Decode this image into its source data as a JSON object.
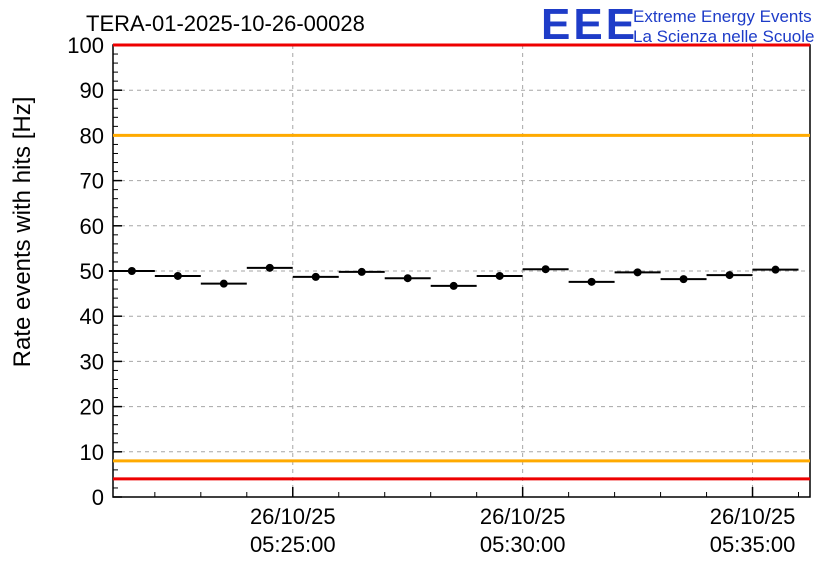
{
  "header": {
    "title": "TERA-01-2025-10-26-00028"
  },
  "logo": {
    "acronym": "EEE",
    "line1": "Extreme Energy Events",
    "line2": "La Scienza nelle Scuole",
    "color": "#1e3cc8"
  },
  "chart_data": {
    "type": "scatter",
    "title": "TERA-01-2025-10-26-00028",
    "ylabel": "Rate events with hits [Hz]",
    "xlabel": "",
    "ylim": [
      0,
      100
    ],
    "y_major_ticks": [
      0,
      10,
      20,
      30,
      40,
      50,
      60,
      70,
      80,
      90,
      100
    ],
    "y_minor_step": 2,
    "x_range_minutes": [
      21.09,
      36.25
    ],
    "x_tick_minutes": [
      25,
      30,
      35
    ],
    "x_tick_labels": [
      {
        "date": "26/10/25",
        "time": "05:25:00"
      },
      {
        "date": "26/10/25",
        "time": "05:30:00"
      },
      {
        "date": "26/10/25",
        "time": "05:35:00"
      }
    ],
    "grid": {
      "on": true,
      "horizontal_every": 10,
      "vertical_at_minutes": [
        25,
        30,
        35
      ],
      "dashed": true,
      "color": "#a6a6a6"
    },
    "points": {
      "marker": "filled-circle",
      "color": "#000000",
      "bin_width_minutes": 1,
      "centers_minutes": [
        21.5,
        22.5,
        23.5,
        24.5,
        25.5,
        26.5,
        27.5,
        28.5,
        29.5,
        30.5,
        31.5,
        32.5,
        33.5,
        34.5,
        35.5
      ],
      "times": [
        "05:21:30",
        "05:22:30",
        "05:23:30",
        "05:24:30",
        "05:25:30",
        "05:26:30",
        "05:27:30",
        "05:28:30",
        "05:29:30",
        "05:30:30",
        "05:31:30",
        "05:32:30",
        "05:33:30",
        "05:34:30",
        "05:35:30"
      ],
      "values": [
        50.0,
        48.9,
        47.2,
        50.7,
        48.7,
        49.8,
        48.4,
        46.7,
        48.9,
        50.4,
        47.6,
        49.7,
        48.2,
        49.1,
        50.3
      ]
    },
    "thresholds": [
      {
        "value": 100,
        "color": "#ee0000"
      },
      {
        "value": 80,
        "color": "#ffaa00"
      },
      {
        "value": 8,
        "color": "#ffaa00"
      },
      {
        "value": 4,
        "color": "#ee0000"
      }
    ],
    "legend": "none"
  }
}
